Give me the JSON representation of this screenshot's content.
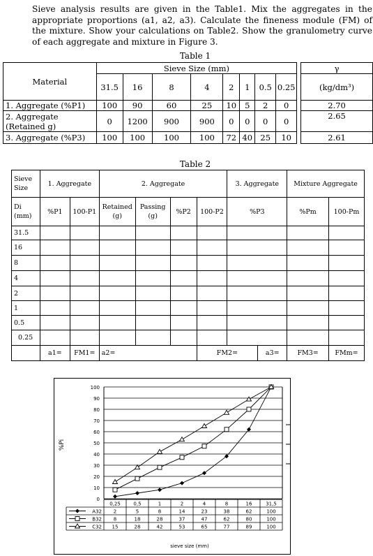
{
  "intro": "Sieve analysis results are given in the Table1. Mix the aggregates in the appropriate proportions (a1, a2, a3). Calculate the fineness module (FM) of the mixture. Show your calculations on Table2. Show the granulometry curve of each aggregate and mixture in Figure 3.",
  "table1": {
    "caption": "Table 1",
    "material_header": "Material",
    "sieve_header": "Sieve Size (mm)",
    "gamma_symbol": "γ",
    "gamma_unit": "(kg/dm³)",
    "sizes": [
      "31.5",
      "16",
      "8",
      "4",
      "2",
      "1",
      "0.5",
      "0.25"
    ],
    "rows": [
      {
        "label": "1. Aggregate (%P1)",
        "values": [
          "100",
          "90",
          "60",
          "25",
          "10",
          "5",
          "2",
          "0"
        ],
        "gamma": "2.70"
      },
      {
        "label": "2. Aggregate (Retained g)",
        "values": [
          "0",
          "1200",
          "900",
          "900",
          "0",
          "0",
          "0",
          "0"
        ],
        "gamma": "2.65"
      },
      {
        "label": "3. Aggregate (%P3)",
        "values": [
          "100",
          "100",
          "100",
          "100",
          "72",
          "40",
          "25",
          "10"
        ],
        "gamma": "2.61"
      }
    ]
  },
  "table2": {
    "caption": "Table 2",
    "h_sieve": "Sieve Size",
    "h_di": "Di",
    "h_mm": "(mm)",
    "h_agg1": "1. Aggregate",
    "h_agg2": "2. Aggregate",
    "h_agg3": "3. Aggregate",
    "h_mix": "Mixture Aggregate",
    "h_p1": "%P1",
    "h_100p1": "100-P1",
    "h_retained": "Retained (g)",
    "h_passing": "Passing (g)",
    "h_p2": "%P2",
    "h_100p2": "100-P2",
    "h_p3": "%P3",
    "h_pm": "%Pm",
    "h_100pm": "100-Pm",
    "sizes": [
      "31.5",
      "16",
      "8",
      "4",
      "2",
      "1",
      "0.5",
      "0.25"
    ],
    "f_a1": "a1=",
    "f_fm1": "FM1=",
    "f_a2": "a2=",
    "f_fm2": "FM2=",
    "f_a3": "a3=",
    "f_fm3": "FM3=",
    "f_fmm": "FMm="
  },
  "chart_data": {
    "type": "line",
    "categories": [
      "0,25",
      "0,5",
      "1",
      "2",
      "4",
      "8",
      "16",
      "31,5"
    ],
    "ylabel": "%Pi",
    "xlabel": "sieve size (mm)",
    "ylim": [
      0,
      100
    ],
    "yticks": [
      "0",
      "10",
      "20",
      "30",
      "40",
      "50",
      "60",
      "70",
      "80",
      "90",
      "100"
    ],
    "grid": true,
    "legend_position": "right",
    "series": [
      {
        "name": "A32",
        "legend": [
          "A3",
          "2"
        ],
        "marker": "diamond",
        "values": [
          2,
          5,
          8,
          14,
          23,
          38,
          62,
          100
        ]
      },
      {
        "name": "B32",
        "legend": [
          "B3",
          "2"
        ],
        "marker": "square",
        "values": [
          8,
          18,
          28,
          37,
          47,
          62,
          80,
          100
        ]
      },
      {
        "name": "C32",
        "legend": [
          "C3",
          "2"
        ],
        "marker": "triangle",
        "values": [
          15,
          28,
          42,
          53,
          65,
          77,
          89,
          100
        ]
      }
    ]
  }
}
